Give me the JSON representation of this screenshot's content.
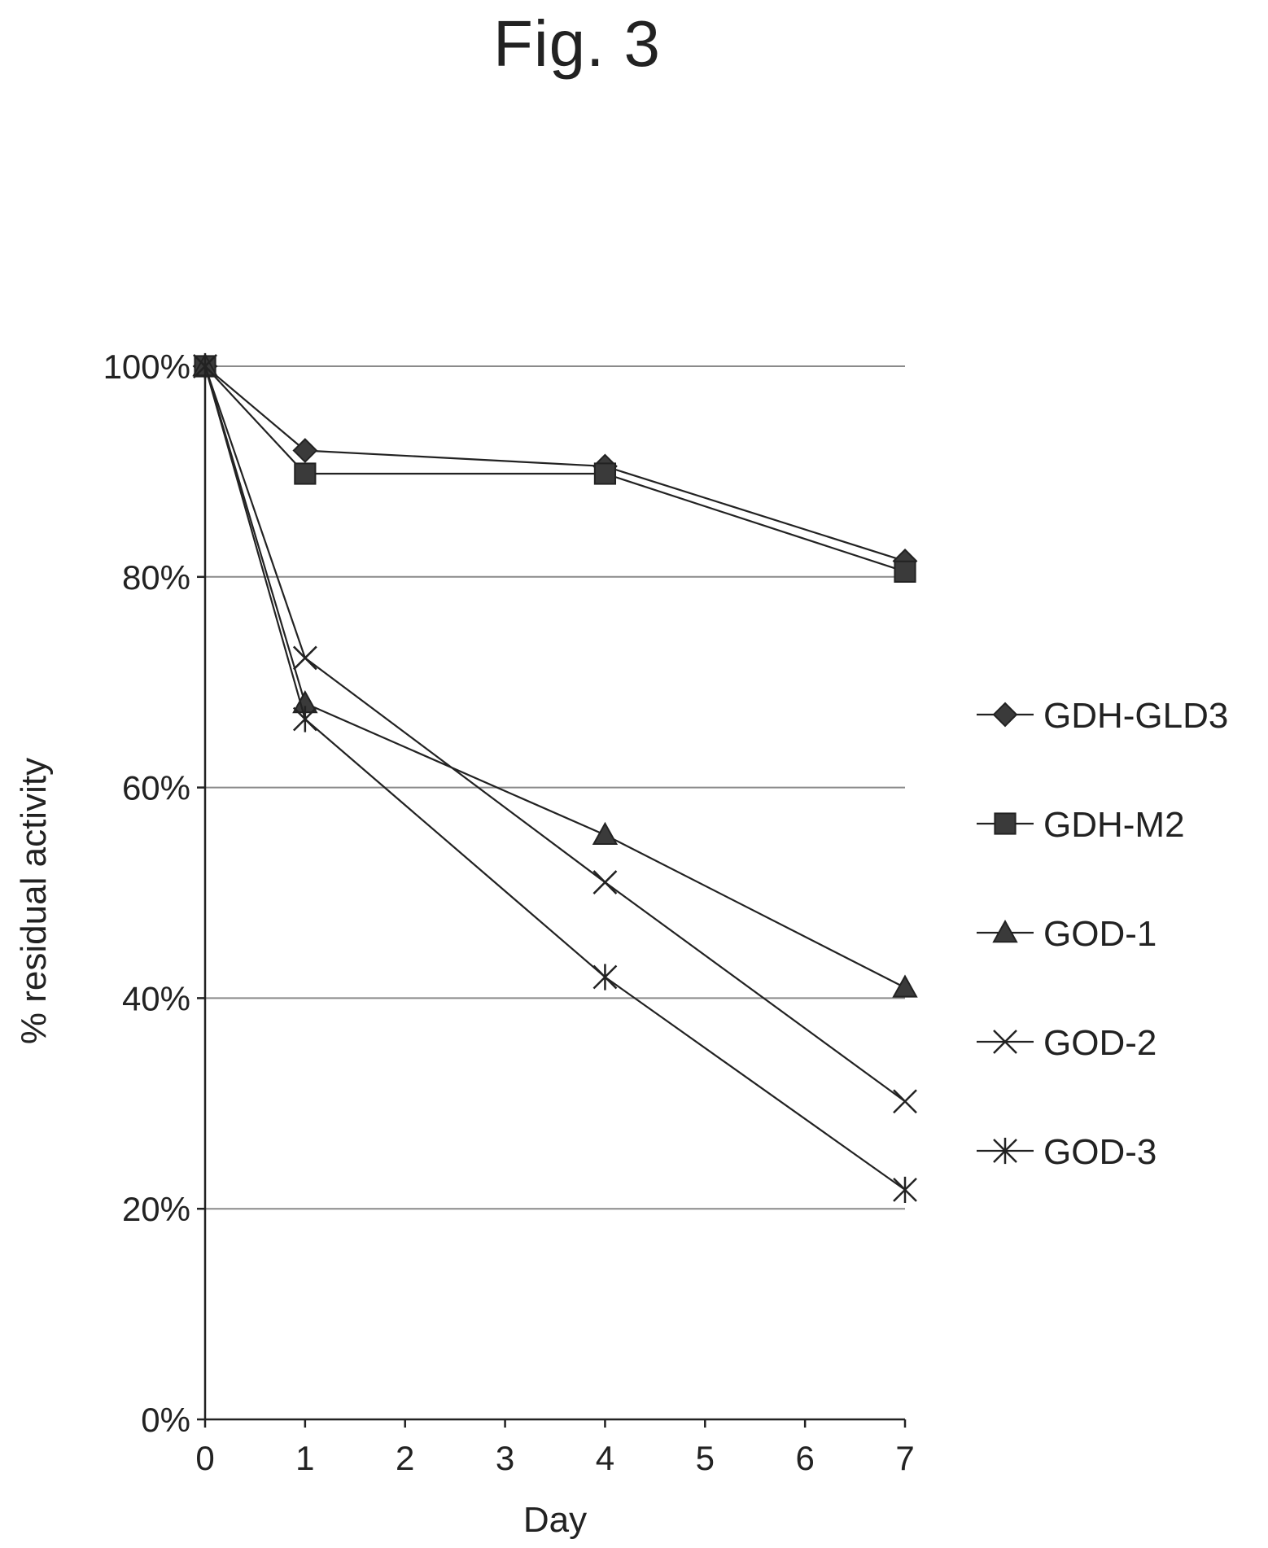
{
  "figure_title": "Fig. 3",
  "chart_data": {
    "type": "line",
    "title": "",
    "xlabel": "Day",
    "ylabel": "% residual activity",
    "x_ticks": [
      0,
      1,
      2,
      3,
      4,
      5,
      6,
      7
    ],
    "y_ticks": [
      "0%",
      "20%",
      "40%",
      "60%",
      "80%",
      "100%"
    ],
    "y_tick_values": [
      0,
      20,
      40,
      60,
      80,
      100
    ],
    "xlim": [
      0,
      7
    ],
    "ylim": [
      0,
      100
    ],
    "grid": "horizontal",
    "legend_position": "right",
    "line_color": "#222222",
    "series": [
      {
        "name": "GDH-GLD3",
        "marker": "diamond",
        "x": [
          0,
          1,
          4,
          7
        ],
        "y": [
          100,
          92,
          90.5,
          81.5
        ]
      },
      {
        "name": "GDH-M2",
        "marker": "square",
        "x": [
          0,
          1,
          4,
          7
        ],
        "y": [
          100,
          89.8,
          89.8,
          80.5
        ]
      },
      {
        "name": "GOD-1",
        "marker": "triangle",
        "x": [
          0,
          1,
          4,
          7
        ],
        "y": [
          100,
          68,
          55.5,
          41
        ]
      },
      {
        "name": "GOD-2",
        "marker": "x",
        "x": [
          0,
          1,
          4,
          7
        ],
        "y": [
          100,
          72.3,
          51,
          30.2
        ]
      },
      {
        "name": "GOD-3",
        "marker": "asterisk",
        "x": [
          0,
          1,
          4,
          7
        ],
        "y": [
          100,
          66.5,
          42,
          21.8
        ]
      }
    ]
  }
}
